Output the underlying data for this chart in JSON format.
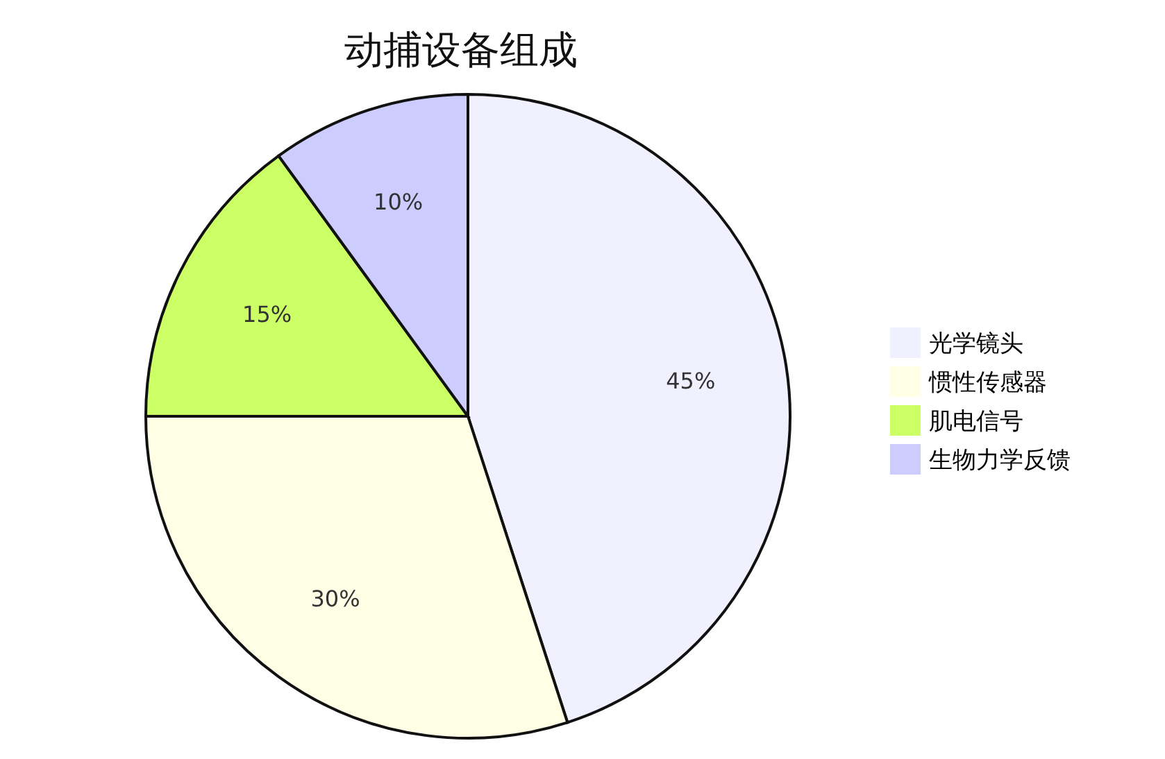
{
  "chart_data": {
    "type": "pie",
    "title": "动捕设备组成",
    "categories": [
      "光学镜头",
      "惯性传感器",
      "肌电信号",
      "生物力学反馈"
    ],
    "values": [
      45,
      30,
      15,
      10
    ],
    "colors": [
      "#f0f0ff",
      "#ffffe6",
      "#ccff66",
      "#ccccff"
    ],
    "value_labels": [
      "45%",
      "30%",
      "15%",
      "10%"
    ],
    "legend": "right"
  }
}
